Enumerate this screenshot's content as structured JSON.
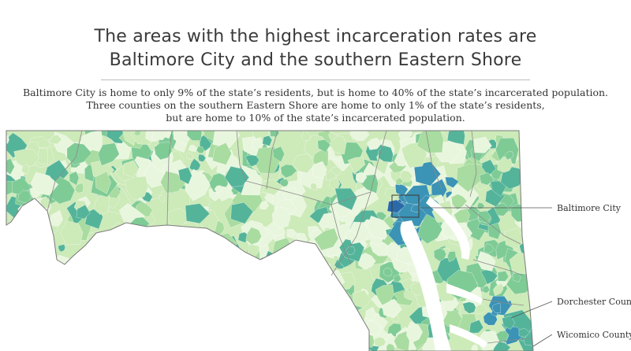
{
  "header": {
    "title_line1": "The areas with the highest incarceration rates are",
    "title_line2": "Baltimore City and the southern Eastern Shore",
    "subtitle_line1": "Baltimore City is home to only 9% of the state’s residents, but is home to 40% of the state’s incarcerated population.",
    "subtitle_line2": "Three counties on the southern Eastern Shore are home to only 1% of the state’s residents,",
    "subtitle_line3": "but are home to 10% of the state’s incarcerated population."
  },
  "map": {
    "labels": {
      "baltimore": "Baltimore City",
      "dorchester": "Dorchester County",
      "wicomico": "Wicomico County"
    },
    "colors": {
      "very_low": "#e9f6de",
      "low": "#cdeab9",
      "medium_low": "#a9dca0",
      "medium": "#7fcb96",
      "medium_high": "#54b49a",
      "high": "#3b93b5",
      "very_high": "#2b6aa8",
      "water": "#ffffff",
      "boundary": "#8a8a8a",
      "leader": "#444444"
    }
  }
}
